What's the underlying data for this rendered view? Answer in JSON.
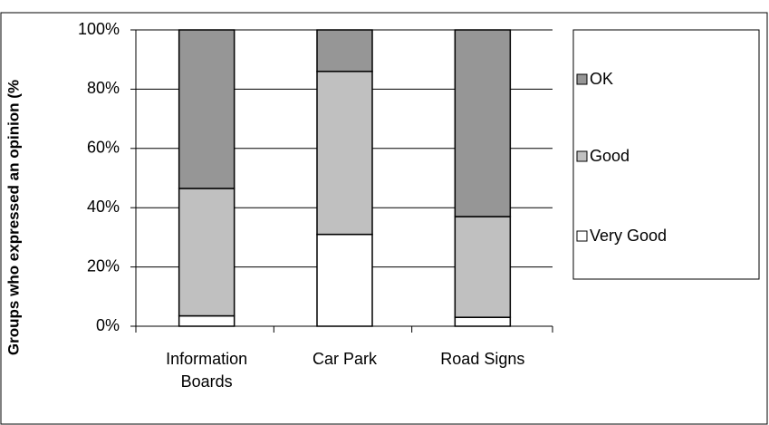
{
  "chart_data": {
    "type": "stacked_bar",
    "ylabel": "Groups who expressed an opinion (%",
    "categories": [
      "Information Boards",
      "Car Park",
      "Road Signs"
    ],
    "series": [
      {
        "name": "Very Good",
        "color": "#ffffff",
        "values": [
          3.5,
          31,
          3
        ]
      },
      {
        "name": "Good",
        "color": "#c0c0c0",
        "values": [
          43,
          55,
          34
        ]
      },
      {
        "name": "OK",
        "color": "#969696",
        "values": [
          53.5,
          14,
          63
        ]
      }
    ],
    "ylim": [
      0,
      100
    ],
    "yticks": [
      {
        "value": 0,
        "label": "0%"
      },
      {
        "value": 20,
        "label": "20%"
      },
      {
        "value": 40,
        "label": "40%"
      },
      {
        "value": 60,
        "label": "60%"
      },
      {
        "value": 80,
        "label": "80%"
      },
      {
        "value": 100,
        "label": "100%"
      }
    ],
    "grid": true,
    "legend": "right"
  }
}
